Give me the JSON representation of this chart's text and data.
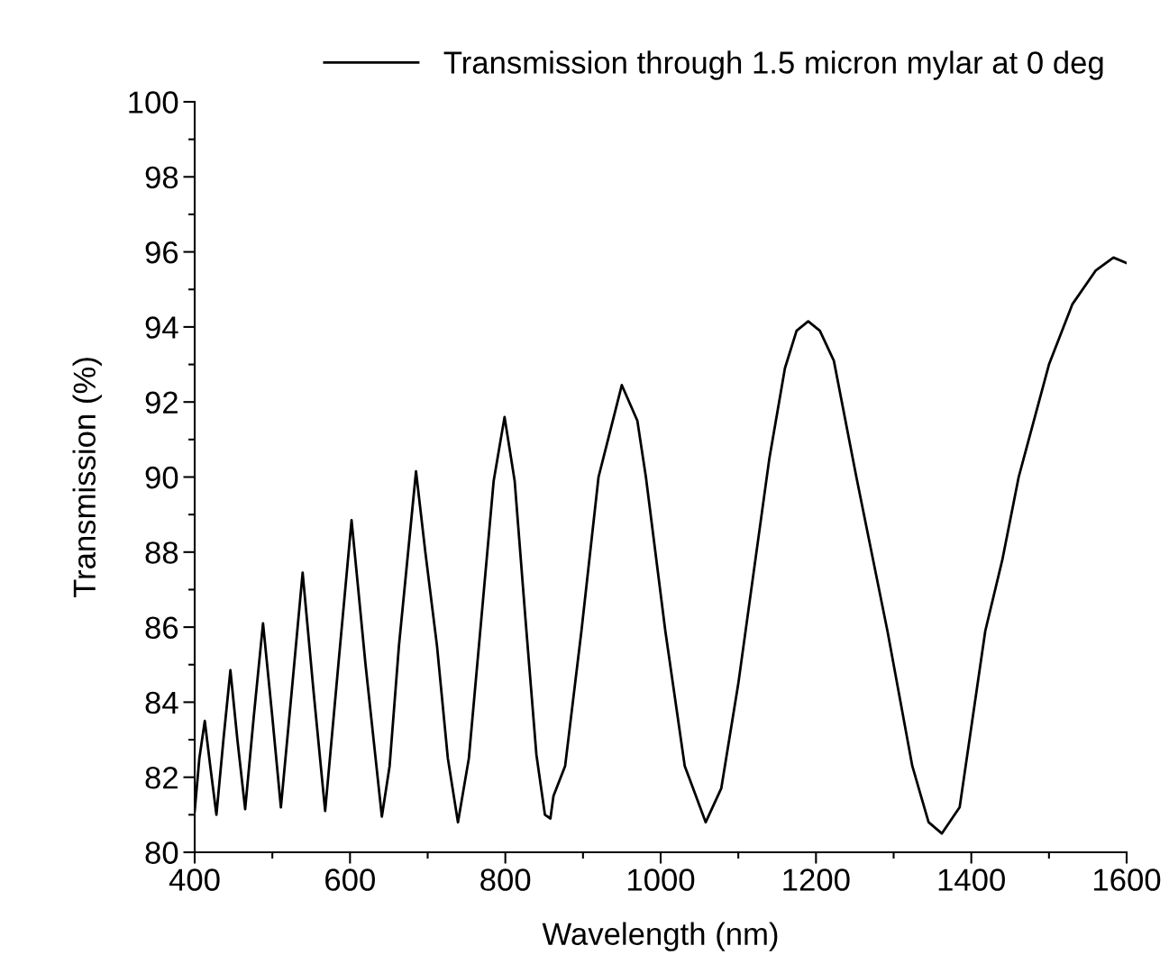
{
  "chart_data": {
    "type": "line",
    "xlabel": "Wavelength (nm)",
    "ylabel": "Transmission (%)",
    "xlim": [
      400,
      1600
    ],
    "xticks": [
      400,
      600,
      800,
      1000,
      1200,
      1400,
      1600
    ],
    "ylim": [
      80,
      100
    ],
    "yticks": [
      80,
      82,
      84,
      86,
      88,
      90,
      92,
      94,
      96,
      98,
      100
    ],
    "grid": false,
    "legend": "top right",
    "marker": "none",
    "line_style": "solid",
    "series": [
      {
        "name": "Transmission through 1.5 micron mylar at 0 deg",
        "color": "#000000",
        "x": [
          400,
          406,
          413,
          420,
          428,
          437,
          446,
          455,
          465,
          476,
          488,
          500,
          511,
          525,
          539,
          553,
          568,
          585,
          602,
          620,
          641,
          651,
          663,
          685,
          697,
          712,
          726,
          739,
          753,
          769,
          785,
          799,
          812,
          826,
          840,
          851,
          858,
          862,
          877,
          898,
          920,
          950,
          970,
          981,
          1006,
          1031,
          1058,
          1078,
          1100,
          1120,
          1140,
          1160,
          1175,
          1190,
          1205,
          1223,
          1252,
          1292,
          1324,
          1345,
          1362,
          1385,
          1418,
          1440,
          1461,
          1500,
          1530,
          1560,
          1583,
          1600
        ],
        "values": [
          81.1,
          82.5,
          83.5,
          82.3,
          81.0,
          83.0,
          84.85,
          83.0,
          81.15,
          83.6,
          86.1,
          83.6,
          81.2,
          84.3,
          87.45,
          84.3,
          81.1,
          85.0,
          88.85,
          85.0,
          80.95,
          82.3,
          85.5,
          90.15,
          88.0,
          85.5,
          82.5,
          80.8,
          82.5,
          86.2,
          89.9,
          91.6,
          89.9,
          86.2,
          82.6,
          81.0,
          80.9,
          81.5,
          82.3,
          85.9,
          90.0,
          92.45,
          91.5,
          90.0,
          85.9,
          82.3,
          80.8,
          81.7,
          84.5,
          87.5,
          90.5,
          92.9,
          93.9,
          94.15,
          93.9,
          93.1,
          90.0,
          85.9,
          82.3,
          80.8,
          80.5,
          81.2,
          85.9,
          87.8,
          90.0,
          93.0,
          94.6,
          95.5,
          95.85,
          95.7
        ]
      }
    ]
  }
}
